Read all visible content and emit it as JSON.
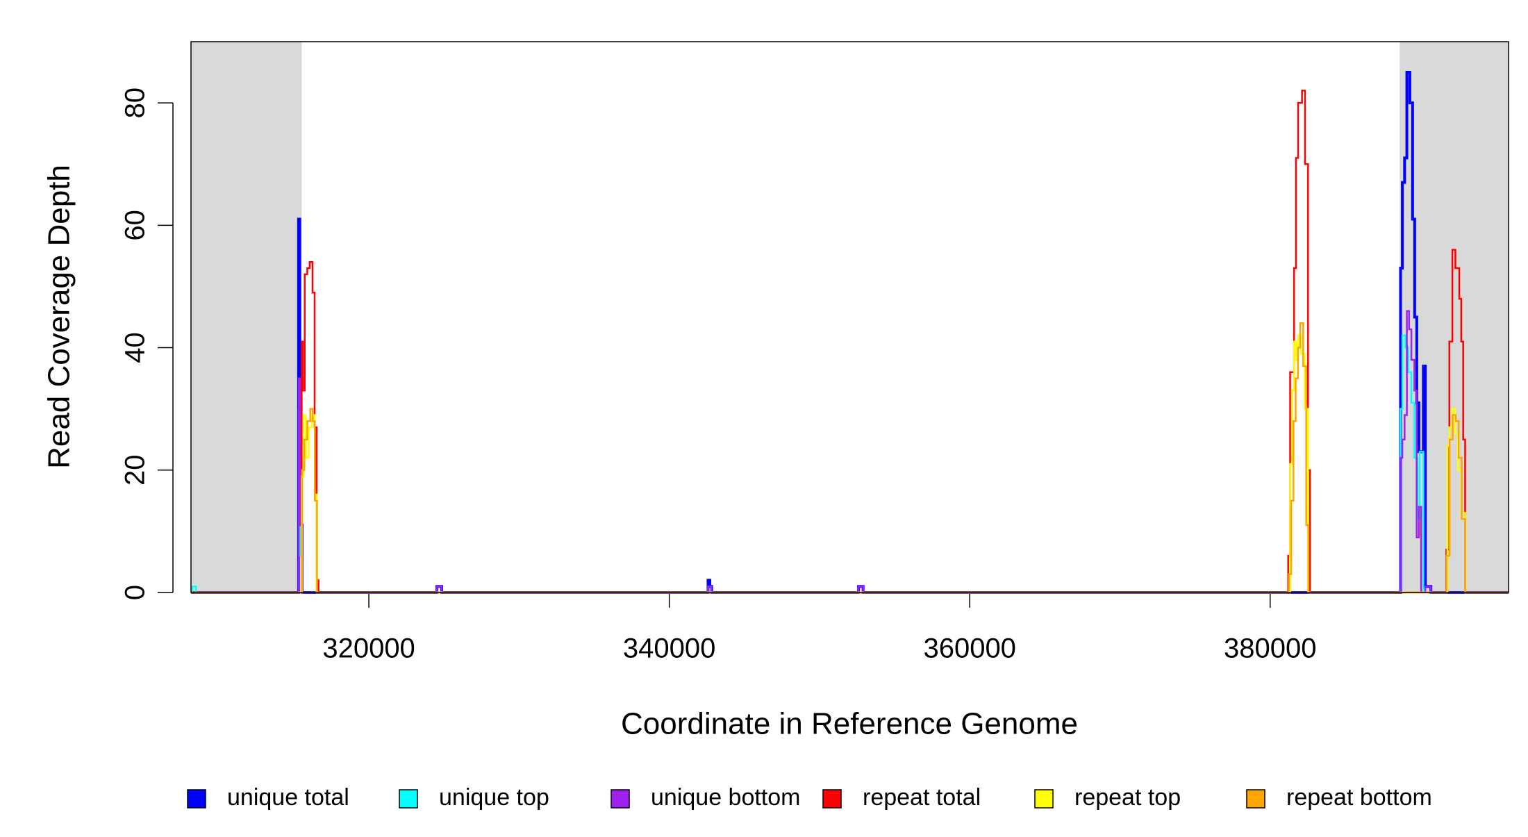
{
  "chart_data": {
    "type": "step",
    "xlabel": "Coordinate in Reference Genome",
    "ylabel": "Read Coverage Depth",
    "xlim": [
      308160,
      395870
    ],
    "ylim": [
      0,
      90
    ],
    "xticks": [
      320000,
      340000,
      360000,
      380000
    ],
    "yticks": [
      0,
      20,
      40,
      60,
      80
    ],
    "shaded_regions": [
      [
        308160,
        315530
      ],
      [
        388630,
        395870
      ]
    ],
    "shade_color": "#d9d9d9",
    "legend": "bottom",
    "series": [
      {
        "name": "unique total",
        "color": "#0000ff",
        "x": [
          308160,
          315320,
          315400,
          315480,
          315560,
          324530,
          324850,
          342580,
          342700,
          342820,
          352600,
          352900,
          388680,
          388800,
          388950,
          389100,
          389300,
          389480,
          389620,
          389760,
          389900,
          390200,
          390330,
          390700
        ],
        "values": [
          0,
          61,
          35,
          11,
          0,
          1,
          0,
          2,
          1,
          0,
          1,
          0,
          53,
          67,
          71,
          85,
          80,
          61,
          45,
          31,
          23,
          37,
          1,
          0
        ]
      },
      {
        "name": "unique top",
        "color": "#00ffff",
        "x": [
          308160,
          308250,
          308500,
          315330,
          315450,
          315560,
          342580,
          342800,
          388680,
          388800,
          389000,
          389200,
          389400,
          389600,
          389800,
          389950,
          390200,
          390330
        ],
        "values": [
          0,
          1,
          0,
          30,
          6,
          0,
          1,
          0,
          30,
          42,
          40,
          36,
          31,
          22,
          12,
          23,
          0,
          0
        ]
      },
      {
        "name": "unique bottom",
        "color": "#a020f0",
        "x": [
          308160,
          315330,
          315420,
          315520,
          324530,
          324850,
          342580,
          342800,
          352600,
          352900,
          388680,
          388800,
          388950,
          389100,
          389250,
          389400,
          389600,
          389750,
          389900,
          390050,
          390330,
          390700
        ],
        "values": [
          0,
          35,
          11,
          0,
          1,
          0,
          1,
          0,
          1,
          0,
          22,
          25,
          29,
          46,
          43,
          38,
          33,
          9,
          14,
          0,
          1,
          0
        ]
      },
      {
        "name": "repeat total",
        "color": "#ff0000",
        "x": [
          308160,
          315530,
          315600,
          315730,
          315900,
          316060,
          316250,
          316390,
          316520,
          316650,
          381200,
          381330,
          381590,
          381720,
          381860,
          382120,
          382320,
          382520,
          382650,
          391730,
          391930,
          392130,
          392330,
          392590,
          392720,
          392850,
          392980
        ],
        "values": [
          0,
          41,
          33,
          52,
          53,
          54,
          49,
          27,
          2,
          0,
          6,
          36,
          53,
          71,
          80,
          82,
          70,
          20,
          0,
          7,
          41,
          56,
          53,
          48,
          41,
          25,
          0
        ]
      },
      {
        "name": "repeat top",
        "color": "#ffff00",
        "x": [
          308160,
          315530,
          315650,
          315800,
          316000,
          316200,
          316400,
          316520,
          381330,
          381450,
          381590,
          381720,
          381860,
          382050,
          382300,
          382520,
          391800,
          391930,
          392100,
          392300,
          392500,
          392720,
          392980
        ],
        "values": [
          0,
          19,
          29,
          22,
          27,
          29,
          16,
          0,
          21,
          33,
          41,
          38,
          42,
          39,
          30,
          0,
          24,
          27,
          30,
          26,
          20,
          13,
          0
        ]
      },
      {
        "name": "repeat bottom",
        "color": "#ffa500",
        "x": [
          308160,
          315560,
          315700,
          315900,
          316100,
          316250,
          316400,
          316550,
          381250,
          381400,
          381550,
          381700,
          381850,
          382000,
          382200,
          382400,
          382550,
          391750,
          391950,
          392150,
          392350,
          392550,
          392750,
          392980
        ],
        "values": [
          0,
          20,
          25,
          28,
          30,
          28,
          15,
          0,
          3,
          15,
          28,
          35,
          40,
          44,
          37,
          11,
          0,
          6,
          25,
          29,
          28,
          22,
          12,
          0
        ]
      }
    ]
  }
}
